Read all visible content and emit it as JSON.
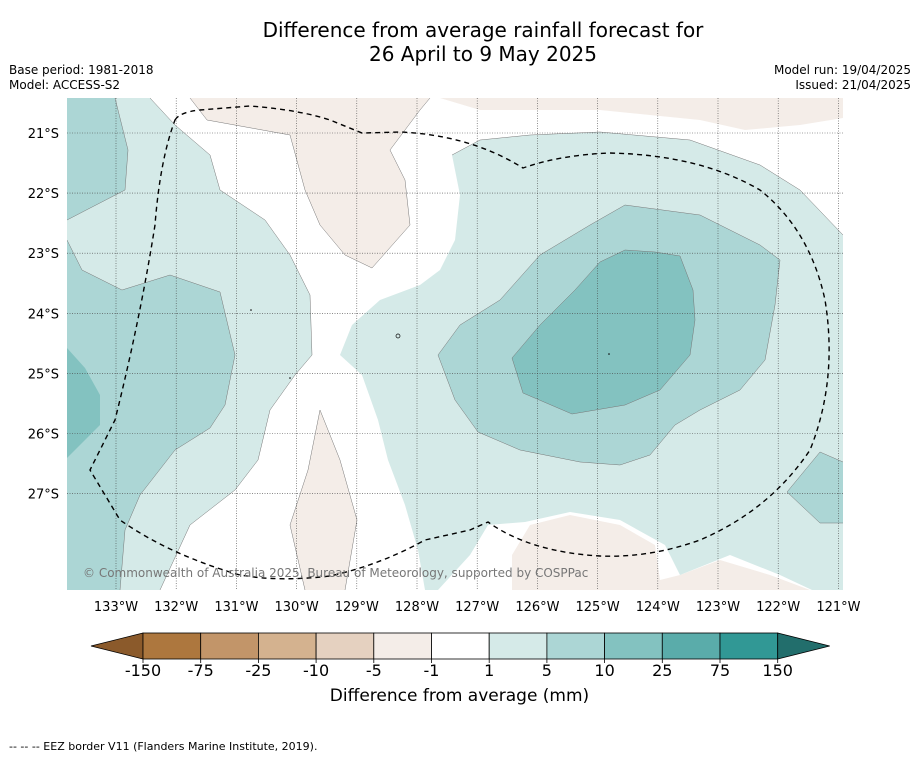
{
  "title": {
    "line1": "Difference from average rainfall forecast for",
    "line2": "26 April to 9 May 2025"
  },
  "meta_left": {
    "base_period": "Base period: 1981-2018",
    "model": "Model: ACCESS-S2"
  },
  "meta_right": {
    "model_run": "Model run: 19/04/2025",
    "issued": "Issued: 21/04/2025"
  },
  "map": {
    "lat_labels": [
      "21°S",
      "22°S",
      "23°S",
      "24°S",
      "25°S",
      "26°S",
      "27°S"
    ],
    "lon_labels": [
      "133°W",
      "132°W",
      "131°W",
      "130°W",
      "129°W",
      "128°W",
      "127°W",
      "126°W",
      "125°W",
      "124°W",
      "123°W",
      "122°W",
      "121°W"
    ],
    "copyright": "© Commonwealth of Australia 2025, Bureau of Meteorology, supported by COSPPac",
    "colors": {
      "dry_5": "#f4ede8",
      "wet_1": "#d5eae8",
      "wet_5": "#acd6d5",
      "wet_10": "#83c2c0"
    }
  },
  "colorbar": {
    "ticks": [
      "-150",
      "-75",
      "-25",
      "-10",
      "-5",
      "-1",
      "1",
      "5",
      "10",
      "25",
      "75",
      "150"
    ],
    "colors": [
      "#8b5a2b",
      "#ad773e",
      "#c29569",
      "#d4b28f",
      "#e5d1c0",
      "#f4ede8",
      "#ffffff",
      "#d5eae8",
      "#acd6d5",
      "#83c2c0",
      "#5aacaa",
      "#319895",
      "#226e6c"
    ],
    "label": "Difference from average (mm)"
  },
  "footer": "--  --  -- EEZ border V11 (Flanders Marine Institute, 2019)."
}
